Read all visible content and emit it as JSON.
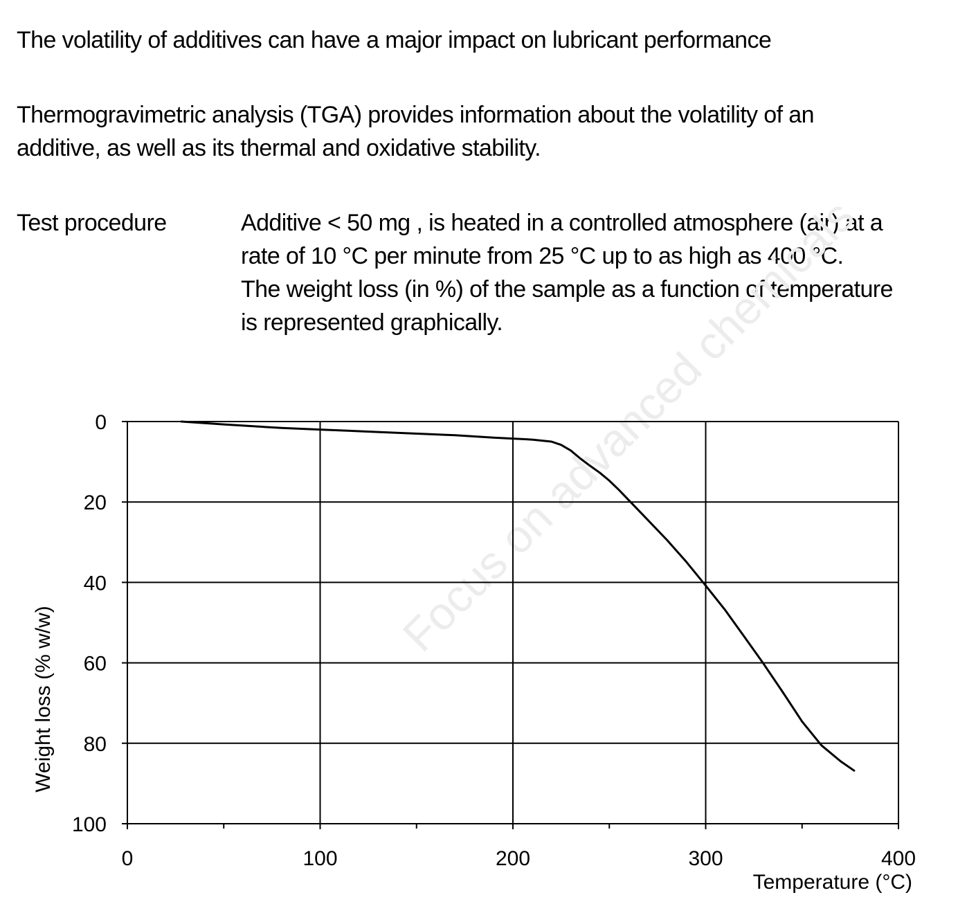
{
  "intro": {
    "line1": "The volatility of additives can have a major impact on lubricant performance",
    "para2": [
      "Thermogravimetric analysis (TGA) provides information about the volatility of an",
      "additive, as well as its thermal and oxidative stability."
    ],
    "procedure_label": "Test procedure",
    "procedure_lines": [
      "Additive < 50 mg , is heated in a controlled atmosphere (air) at a",
      "rate of 10 °C per minute from 25 °C up to as high as 400 °C.",
      "The weight loss (in %) of the sample as a function of temperature",
      "is represented graphically."
    ]
  },
  "watermark": {
    "text": "Focus on advanced chemicals",
    "color": "#ececec"
  },
  "chart_data": {
    "type": "line",
    "title": "",
    "xlabel": "Temperature (°C)",
    "ylabel": "Weight loss (% w/w)",
    "xlim": [
      0,
      400
    ],
    "ylim": [
      0,
      100
    ],
    "y_inverted": true,
    "x_ticks": [
      0,
      100,
      200,
      300,
      400
    ],
    "x_minor_ticks": [
      50,
      150,
      250,
      350
    ],
    "y_ticks": [
      0,
      20,
      40,
      60,
      80,
      100
    ],
    "grid": true,
    "line_color": "#000000",
    "series": [
      {
        "x": [
          28,
          50,
          80,
          100,
          130,
          170,
          190,
          210,
          220,
          225,
          230,
          235,
          240,
          245,
          250,
          255,
          260,
          270,
          280,
          290,
          300,
          310,
          320,
          330,
          340,
          350,
          360,
          370,
          377
        ],
        "y": [
          0,
          0.7,
          1.6,
          2.0,
          2.6,
          3.4,
          4.0,
          4.5,
          5.0,
          5.8,
          7.2,
          9.2,
          11.0,
          12.7,
          14.7,
          17.0,
          19.5,
          24.5,
          29.5,
          34.9,
          40.8,
          46.8,
          53.5,
          60.2,
          67.3,
          74.6,
          80.5,
          84.5,
          86.8
        ]
      }
    ]
  }
}
